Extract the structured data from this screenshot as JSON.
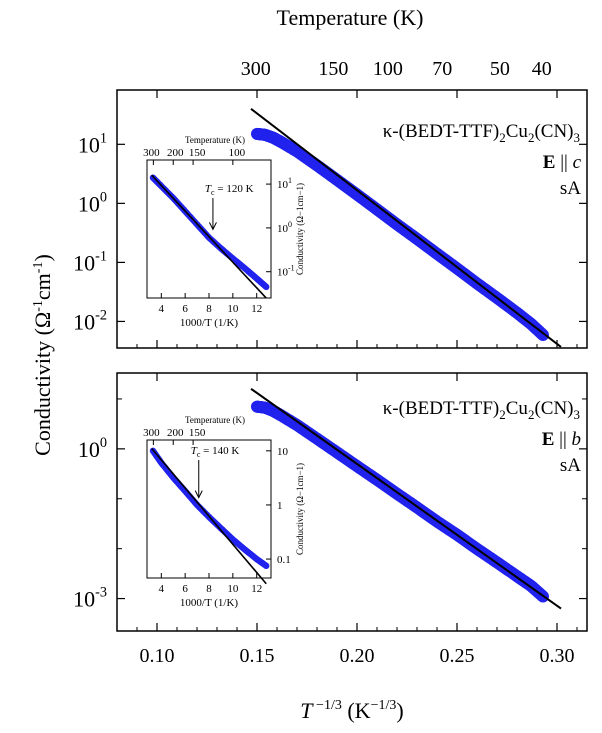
{
  "colors": {
    "data": "#2222ee",
    "fit": "#000000",
    "axis": "#000000"
  },
  "figure": {
    "top_axis_label": "Temperature (K)",
    "top_ticks": [
      "300",
      "150",
      "100",
      "70",
      "50",
      "40"
    ],
    "xlabel": "T −1/3 (K−1/3)",
    "ylabel": "Conductivity (Ω−1cm−1)",
    "bottom_ticks": [
      "0.10",
      "0.15",
      "0.20",
      "0.25",
      "0.30"
    ]
  },
  "chart_data": [
    {
      "type": "scatter",
      "panel": "top",
      "xlabel": "T −1/3 (K−1/3)",
      "ylabel": "Conductivity (Ω−1cm−1)",
      "xlim": [
        0.08,
        0.315
      ],
      "ylim_log10": [
        -2.45,
        1.92
      ],
      "log_y": true,
      "y_tick_labels": [
        "10^1",
        "10^0",
        "10^-1",
        "10^-2"
      ],
      "labels": [
        "κ-(BEDT-TTF)2Cu2(CN)3",
        "E || c",
        "sA"
      ],
      "series": [
        {
          "name": "data",
          "x": [
            0.15,
            0.154,
            0.158,
            0.162,
            0.17,
            0.18,
            0.19,
            0.2,
            0.21,
            0.22,
            0.23,
            0.24,
            0.25,
            0.26,
            0.27,
            0.28,
            0.287,
            0.293
          ],
          "y": [
            15.0,
            14.5,
            13.0,
            11.0,
            7.6,
            4.4,
            2.5,
            1.41,
            0.79,
            0.44,
            0.25,
            0.14,
            0.079,
            0.044,
            0.025,
            0.014,
            0.0091,
            0.0059
          ]
        },
        {
          "name": "fit",
          "x": [
            0.147,
            0.302
          ],
          "y": [
            40.0,
            0.0037
          ]
        }
      ],
      "inset": {
        "top_axis_label": "Temperature (K)",
        "top_ticks": [
          "300",
          "200",
          "150",
          "100"
        ],
        "xlabel": "1000/T (1/K)",
        "x_ticks": [
          "4",
          "6",
          "8",
          "10",
          "12"
        ],
        "ylabel": "Conductivity (Ω−1cm−1)",
        "y_ticks": [
          "10^1",
          "10^0",
          "10^-1"
        ],
        "annotation": "Tc = 120 K",
        "data": {
          "x": [
            3.3,
            4.0,
            5.0,
            6.0,
            7.0,
            8.0,
            9.0,
            10.0,
            11.0,
            12.0,
            12.8
          ],
          "y": [
            14.0,
            9.0,
            4.8,
            2.4,
            1.2,
            0.6,
            0.34,
            0.2,
            0.12,
            0.07,
            0.045
          ]
        },
        "fit": {
          "x": [
            3.2,
            12.8
          ],
          "y": [
            16.0,
            0.025
          ]
        }
      }
    },
    {
      "type": "scatter",
      "panel": "bottom",
      "xlabel": "T −1/3 (K−1/3)",
      "ylabel": "Conductivity (Ω−1cm−1)",
      "xlim": [
        0.08,
        0.315
      ],
      "ylim_log10": [
        -3.65,
        1.52
      ],
      "log_y": true,
      "y_tick_labels": [
        "10^0",
        "10^-3"
      ],
      "labels": [
        "κ-(BEDT-TTF)2Cu2(CN)3",
        "E || b",
        "sA"
      ],
      "series": [
        {
          "name": "data",
          "x": [
            0.15,
            0.154,
            0.158,
            0.162,
            0.17,
            0.18,
            0.19,
            0.2,
            0.21,
            0.22,
            0.23,
            0.24,
            0.25,
            0.26,
            0.27,
            0.28,
            0.287,
            0.293
          ],
          "y": [
            7.0,
            6.7,
            5.8,
            4.7,
            3.0,
            1.6,
            0.85,
            0.45,
            0.24,
            0.126,
            0.067,
            0.035,
            0.019,
            0.0099,
            0.0053,
            0.0028,
            0.0018,
            0.0011
          ]
        },
        {
          "name": "fit",
          "x": [
            0.147,
            0.302
          ],
          "y": [
            16.0,
            0.00063
          ]
        }
      ],
      "inset": {
        "top_axis_label": "Temperature (K)",
        "top_ticks": [
          "300",
          "200",
          "150"
        ],
        "xlabel": "1000/T (1/K)",
        "x_ticks": [
          "4",
          "6",
          "8",
          "10",
          "12"
        ],
        "ylabel": "Conductivity (Ω−1cm−1)",
        "y_ticks": [
          "10",
          "1",
          "0.1"
        ],
        "annotation": "Tc = 140 K",
        "data": {
          "x": [
            3.3,
            4.0,
            5.0,
            6.0,
            7.0,
            8.0,
            9.0,
            10.0,
            11.0,
            12.0,
            12.8
          ],
          "y": [
            10.0,
            6.0,
            3.2,
            1.8,
            1.0,
            0.6,
            0.37,
            0.23,
            0.15,
            0.1,
            0.075
          ]
        },
        "fit": {
          "x": [
            3.2,
            12.8
          ],
          "y": [
            11.0,
            0.035
          ]
        }
      }
    }
  ]
}
